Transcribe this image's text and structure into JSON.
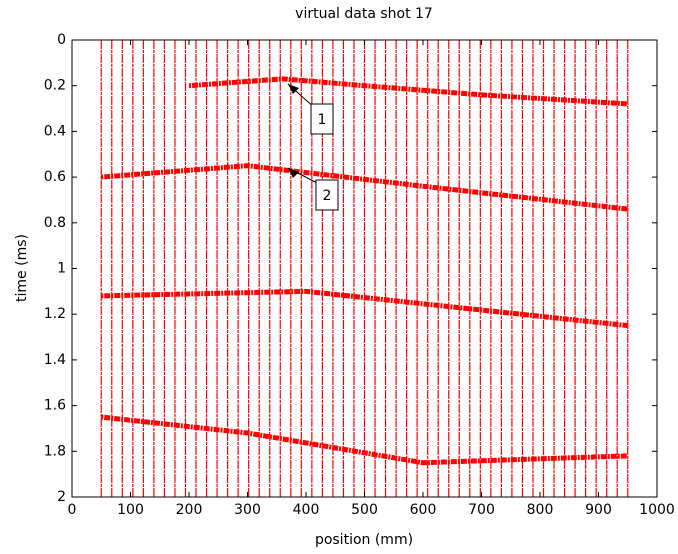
{
  "chart_data": {
    "type": "wiggle",
    "title": "virtual data shot 17",
    "x_label": "position (mm)",
    "y_label": "time (ms)",
    "xlim": [
      0,
      1000
    ],
    "ylim": [
      0,
      2
    ],
    "xticks": [
      0,
      100,
      200,
      300,
      400,
      500,
      600,
      700,
      800,
      900,
      1000
    ],
    "yticks": [
      0,
      0.2,
      0.4,
      0.6,
      0.8,
      1,
      1.2,
      1.4,
      1.6,
      1.8,
      2
    ],
    "y_reversed": true,
    "color": "#ff0000",
    "x": [
      50,
      68,
      86,
      104,
      122,
      140,
      158,
      176,
      194,
      212,
      230,
      248,
      266,
      284,
      302,
      320,
      338,
      356,
      374,
      392,
      410,
      428,
      446,
      464,
      482,
      500,
      518,
      536,
      554,
      572,
      590,
      608,
      626,
      644,
      662,
      680,
      698,
      716,
      734,
      752,
      770,
      788,
      806,
      824,
      842,
      860,
      878,
      896,
      914,
      932,
      950
    ],
    "events": [
      {
        "x": [
          200,
          360,
          500,
          700,
          950
        ],
        "values": [
          0.2,
          0.17,
          0.2,
          0.24,
          0.28
        ]
      },
      {
        "x": [
          50,
          300,
          600,
          950
        ],
        "values": [
          0.6,
          0.55,
          0.64,
          0.74
        ]
      },
      {
        "x": [
          50,
          400,
          950
        ],
        "values": [
          1.12,
          1.1,
          1.25
        ]
      },
      {
        "x": [
          50,
          300,
          600,
          950
        ],
        "values": [
          1.65,
          1.72,
          1.85,
          1.82
        ]
      }
    ],
    "annotations": [
      "1",
      "2"
    ]
  }
}
